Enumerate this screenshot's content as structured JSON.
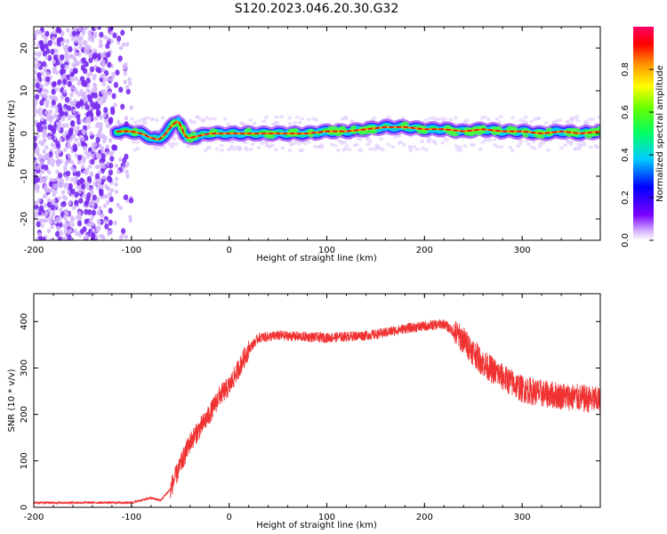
{
  "title": "S120.2023.046.20.30.G32",
  "colors": {
    "scatter_noise": "#8a3cf0",
    "snr_line": "#f03232",
    "frame": "#000000"
  },
  "chart_data": [
    {
      "type": "heatmap",
      "xlabel": "Height of straight line (km)",
      "ylabel": "Frequency (Hz)",
      "xlim": [
        -200,
        380
      ],
      "ylim": [
        -25,
        25
      ],
      "xticks": [
        -200,
        -100,
        0,
        100,
        200,
        300
      ],
      "yticks": [
        -20,
        -10,
        0,
        10,
        20
      ],
      "ridge": {
        "x": [
          -115,
          -100,
          -90,
          -80,
          -72,
          -65,
          -58,
          -52,
          -48,
          -44,
          -40,
          -30,
          -20,
          -10,
          0,
          20,
          40,
          60,
          80,
          100,
          120,
          140,
          160,
          180,
          200,
          220,
          240,
          260,
          280,
          300,
          320,
          340,
          360,
          380
        ],
        "freq": [
          0.5,
          0.5,
          0,
          -1,
          -1.5,
          0,
          2,
          3,
          1,
          -1,
          -1,
          -0.5,
          0,
          0,
          0,
          0,
          0,
          0,
          0,
          0.5,
          0.5,
          1,
          1.5,
          1.5,
          1,
          1,
          0.5,
          1,
          0.5,
          0.5,
          0,
          0.5,
          0,
          0.5
        ]
      },
      "noise_region_x": [
        -200,
        -100
      ],
      "colorbar": {
        "label": "Normalized spectral amplitude",
        "ticks": [
          "0.0",
          "0.2",
          "0.4",
          "0.6",
          "0.8"
        ],
        "range": [
          0,
          1
        ]
      }
    },
    {
      "type": "line",
      "xlabel": "Height of straight line (km)",
      "ylabel": "SNR (10 * v/v)",
      "xlim": [
        -200,
        380
      ],
      "ylim": [
        0,
        460
      ],
      "xticks": [
        -200,
        -100,
        0,
        100,
        200,
        300
      ],
      "yticks": [
        0,
        100,
        200,
        300,
        400
      ],
      "series": [
        {
          "x": [
            -200,
            -150,
            -100,
            -80,
            -70,
            -60,
            -50,
            -40,
            -30,
            -20,
            -10,
            0,
            10,
            20,
            30,
            50,
            100,
            150,
            180,
            200,
            220,
            240,
            260,
            280,
            300,
            320,
            340,
            360,
            380
          ],
          "values": [
            10,
            10,
            10,
            20,
            15,
            40,
            90,
            140,
            170,
            200,
            240,
            260,
            300,
            340,
            365,
            370,
            365,
            372,
            385,
            390,
            395,
            360,
            310,
            280,
            255,
            245,
            240,
            235,
            230
          ]
        }
      ]
    }
  ]
}
